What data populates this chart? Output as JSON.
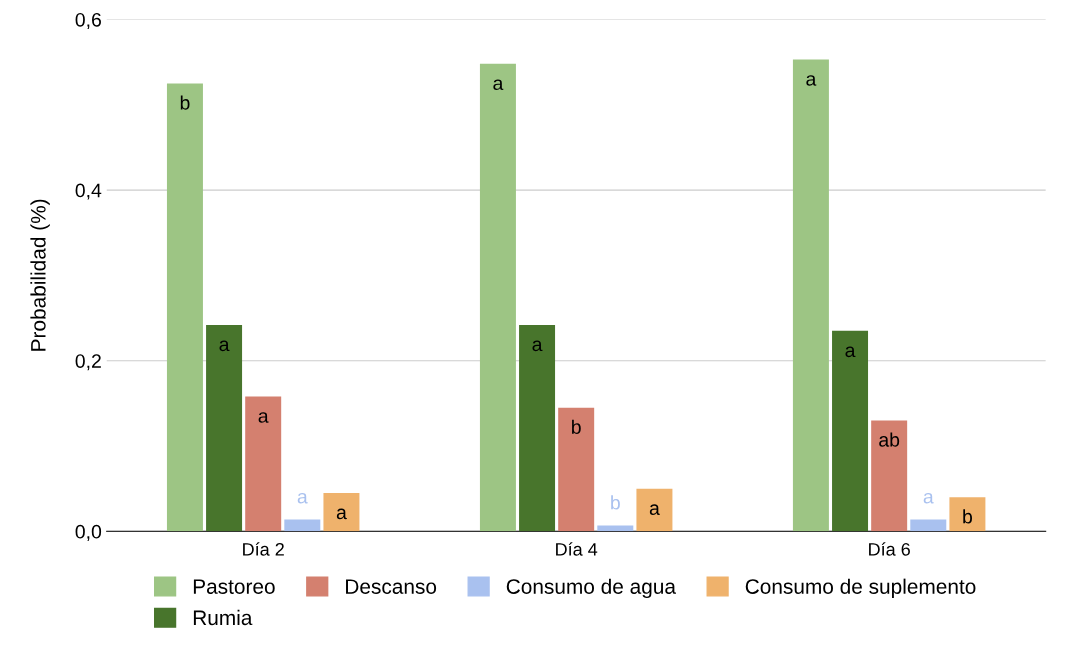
{
  "chart_data": {
    "type": "bar",
    "ylabel": "Probabilidad (%)",
    "categories": [
      "Día 2",
      "Día 4",
      "Día 6"
    ],
    "series": [
      {
        "name": "Pastoreo",
        "color": "#9dc584",
        "values": [
          0.525,
          0.548,
          0.553
        ],
        "value_labels": [
          "b",
          "a",
          "a"
        ]
      },
      {
        "name": "Rumia",
        "color": "#48752c",
        "values": [
          0.242,
          0.242,
          0.235
        ],
        "value_labels": [
          "a",
          "a",
          "a"
        ]
      },
      {
        "name": "Descanso",
        "color": "#d4806f",
        "values": [
          0.158,
          0.145,
          0.13
        ],
        "value_labels": [
          "a",
          "b",
          "ab"
        ]
      },
      {
        "name": "Consumo de agua",
        "color": "#a9c1ef",
        "values": [
          0.014,
          0.007,
          0.014
        ],
        "value_labels": [
          "a",
          "b",
          "a"
        ]
      },
      {
        "name": "Consumo de suplemento",
        "color": "#efb26c",
        "values": [
          0.045,
          0.05,
          0.04
        ],
        "value_labels": [
          "a",
          "a",
          "b"
        ]
      }
    ],
    "ylim": [
      0,
      0.6
    ],
    "yticks": [
      {
        "value": 0,
        "label": "0,0"
      },
      {
        "value": 0.2,
        "label": "0,2"
      },
      {
        "value": 0.4,
        "label": "0,4"
      },
      {
        "value": 0.6,
        "label": "0,6"
      }
    ],
    "grid": "y",
    "legend": "bottom"
  }
}
